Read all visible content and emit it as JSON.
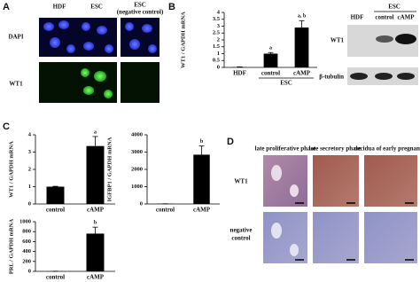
{
  "panels": {
    "A": {
      "letter": "A",
      "columns": [
        "HDF",
        "ESC",
        "ESC",
        "(negative control)"
      ],
      "rows": [
        "DAPI",
        "WT1"
      ]
    },
    "B": {
      "letter": "B",
      "blot_group": "ESC",
      "blot_lanes": [
        "HDF",
        "control",
        "cAMP"
      ],
      "blot_rows": [
        "WT1",
        "β-tubulin"
      ]
    },
    "C": {
      "letter": "C"
    },
    "D": {
      "letter": "D",
      "columns": [
        "late proliferative phase",
        "late secretory phase",
        "decidua of early pregnancy"
      ],
      "rows": [
        "WT1",
        "negative",
        "control"
      ]
    }
  },
  "chart_data": [
    {
      "type": "bar",
      "y_label": "WT1 / GAPDH mRNA",
      "categories": [
        "HDF",
        "control",
        "cAMP"
      ],
      "group_label": "ESC",
      "values": [
        0.02,
        1,
        2.9
      ],
      "errors": [
        0.02,
        0.08,
        0.5
      ],
      "bar_labels": [
        null,
        "a",
        "a, b"
      ],
      "color": "#000000",
      "ylim": [
        0,
        4
      ],
      "yticks": [
        0,
        0.5,
        1,
        1.5,
        2,
        2.5,
        3,
        3.5,
        4
      ]
    },
    {
      "type": "bar",
      "y_label": "WT1 / GAPDH mRNA",
      "categories": [
        "control",
        "cAMP"
      ],
      "values": [
        1,
        3.35
      ],
      "errors": [
        0.02,
        0.55
      ],
      "bar_labels": [
        null,
        "a"
      ],
      "color": "#000000",
      "ylim": [
        0,
        4
      ],
      "yticks": [
        0,
        1,
        2,
        3,
        4
      ]
    },
    {
      "type": "bar",
      "y_label": "IGFBP1 / GAPDH mRNA",
      "categories": [
        "control",
        "cAMP"
      ],
      "values": [
        10,
        2850
      ],
      "errors": [
        2,
        500
      ],
      "bar_labels": [
        null,
        "b"
      ],
      "color": "#000000",
      "ylim": [
        0,
        4000
      ],
      "yticks": [
        0,
        1000,
        2000,
        3000,
        4000
      ]
    },
    {
      "type": "bar",
      "y_label": "PRL / GAPDH mRNA",
      "categories": [
        "control",
        "cAMP"
      ],
      "values": [
        2,
        760
      ],
      "errors": [
        1,
        130
      ],
      "bar_labels": [
        null,
        "b"
      ],
      "color": "#000000",
      "ylim": [
        0,
        1000
      ],
      "yticks": [
        0,
        200,
        400,
        600,
        800,
        1000
      ]
    }
  ]
}
